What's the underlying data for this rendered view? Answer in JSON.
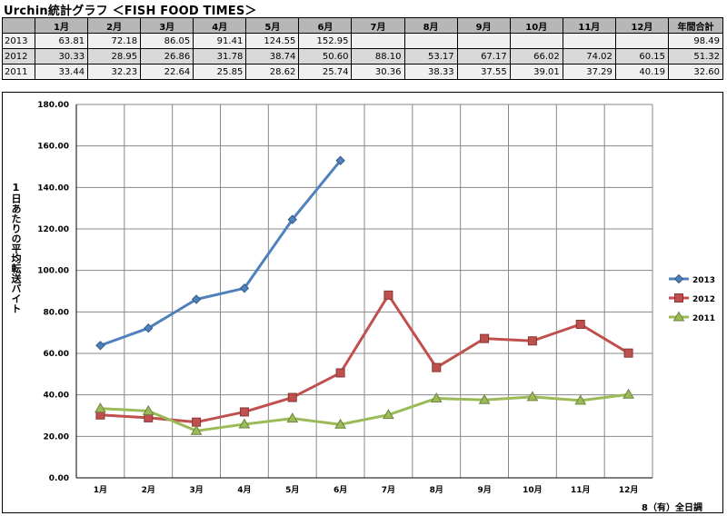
{
  "title": "Urchin統計グラフ ＜FISH FOOD TIMES＞",
  "table": {
    "headers": [
      "",
      "1月",
      "2月",
      "3月",
      "4月",
      "5月",
      "6月",
      "7月",
      "8月",
      "9月",
      "10月",
      "11月",
      "12月",
      "年間合計"
    ],
    "rows": [
      {
        "year": "2013",
        "cells": [
          "63.81",
          "72.18",
          "86.05",
          "91.41",
          "124.55",
          "152.95",
          "",
          "",
          "",
          "",
          "",
          "",
          "98.49"
        ]
      },
      {
        "year": "2012",
        "cells": [
          "30.33",
          "28.95",
          "26.86",
          "31.78",
          "38.74",
          "50.60",
          "88.10",
          "53.17",
          "67.17",
          "66.02",
          "74.02",
          "60.15",
          "51.32"
        ]
      },
      {
        "year": "2011",
        "cells": [
          "33.44",
          "32.23",
          "22.64",
          "25.85",
          "28.62",
          "25.74",
          "30.36",
          "38.33",
          "37.55",
          "39.01",
          "37.29",
          "40.19",
          "32.60"
        ]
      }
    ]
  },
  "chart_data": {
    "type": "line",
    "title": "",
    "xlabel": "",
    "ylabel": "1日あたりの平均転送バイト",
    "categories": [
      "1月",
      "2月",
      "3月",
      "4月",
      "5月",
      "6月",
      "7月",
      "8月",
      "9月",
      "10月",
      "11月",
      "12月"
    ],
    "ylim": [
      0,
      180
    ],
    "yticks": [
      "0.00",
      "20.00",
      "40.00",
      "60.00",
      "80.00",
      "100.00",
      "120.00",
      "140.00",
      "160.00",
      "180.00"
    ],
    "grid": true,
    "legend_position": "right",
    "series": [
      {
        "name": "2013",
        "color": "#4f81bd",
        "marker": "diamond",
        "values": [
          63.81,
          72.18,
          86.05,
          91.41,
          124.55,
          152.95,
          null,
          null,
          null,
          null,
          null,
          null
        ]
      },
      {
        "name": "2012",
        "color": "#c0504d",
        "marker": "square",
        "values": [
          30.33,
          28.95,
          26.86,
          31.78,
          38.74,
          50.6,
          88.1,
          53.17,
          67.17,
          66.02,
          74.02,
          60.15
        ]
      },
      {
        "name": "2011",
        "color": "#9bbb59",
        "marker": "triangle",
        "values": [
          33.44,
          32.23,
          22.64,
          25.85,
          28.62,
          25.74,
          30.36,
          38.33,
          37.55,
          39.01,
          37.29,
          40.19
        ]
      }
    ]
  },
  "footnote": "8（有）全日調"
}
